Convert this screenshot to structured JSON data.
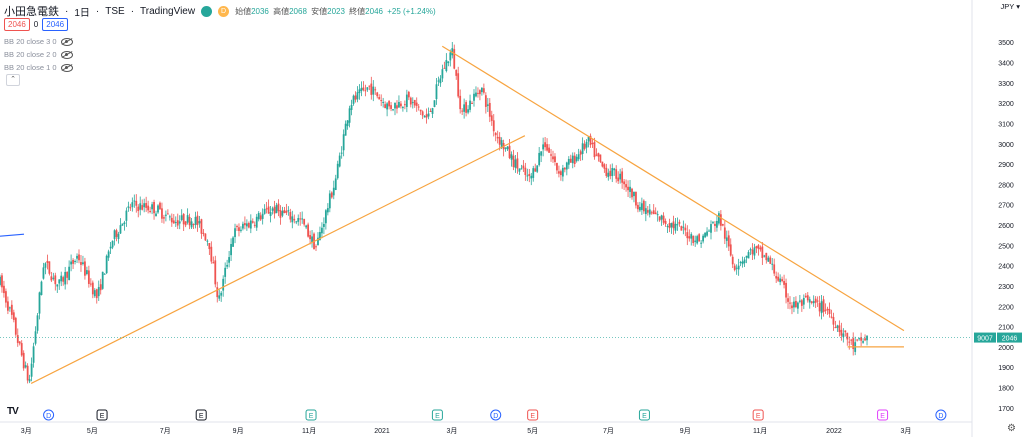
{
  "header": {
    "symbol": "小田急電鉄",
    "interval": "1日",
    "exchange": "TSE",
    "provider": "TradingView",
    "status_badge": "D",
    "open_label": "始値",
    "open_value": "2036",
    "high_label": "高値",
    "high_value": "2068",
    "low_label": "安値",
    "low_value": "2023",
    "close_label": "終値",
    "close_value": "2046",
    "change": "+25 (+1.24%)",
    "bid": "2046",
    "spread": "0",
    "ask": "2046"
  },
  "indicators": [
    {
      "label": "BB 20 close 3 0"
    },
    {
      "label": "BB 20 close 2 0"
    },
    {
      "label": "BB 20 close 1 0"
    }
  ],
  "currency": "JPY",
  "colors": {
    "up": "#26a69a",
    "down": "#ef5350",
    "trend": "#f7a440",
    "accent": "#2962ff"
  },
  "chart_data": {
    "type": "candlestick",
    "x_ticks": [
      "3月",
      "5月",
      "7月",
      "9月",
      "11月",
      "2021",
      "3月",
      "5月",
      "7月",
      "9月",
      "11月",
      "2022",
      "3月"
    ],
    "y_ticks": [
      1700,
      1800,
      1900,
      2000,
      2100,
      2200,
      2300,
      2400,
      2500,
      2600,
      2700,
      2800,
      2900,
      3000,
      3100,
      3200,
      3300,
      3400,
      3500
    ],
    "ylim": [
      1650,
      3570
    ],
    "last_price": 2046,
    "last_price_label": "2046",
    "symbol_code": "9007",
    "price_path": [
      [
        0.0,
        2320
      ],
      [
        0.012,
        2150
      ],
      [
        0.02,
        2000
      ],
      [
        0.03,
        1820
      ],
      [
        0.045,
        2420
      ],
      [
        0.06,
        2300
      ],
      [
        0.08,
        2450
      ],
      [
        0.1,
        2240
      ],
      [
        0.115,
        2520
      ],
      [
        0.135,
        2700
      ],
      [
        0.16,
        2680
      ],
      [
        0.18,
        2620
      ],
      [
        0.2,
        2630
      ],
      [
        0.215,
        2520
      ],
      [
        0.225,
        2220
      ],
      [
        0.24,
        2560
      ],
      [
        0.26,
        2620
      ],
      [
        0.28,
        2680
      ],
      [
        0.31,
        2620
      ],
      [
        0.325,
        2490
      ],
      [
        0.345,
        2820
      ],
      [
        0.36,
        3200
      ],
      [
        0.38,
        3280
      ],
      [
        0.4,
        3180
      ],
      [
        0.42,
        3220
      ],
      [
        0.44,
        3120
      ],
      [
        0.455,
        3360
      ],
      [
        0.465,
        3460
      ],
      [
        0.475,
        3150
      ],
      [
        0.495,
        3280
      ],
      [
        0.51,
        3050
      ],
      [
        0.53,
        2900
      ],
      [
        0.545,
        2820
      ],
      [
        0.56,
        3010
      ],
      [
        0.575,
        2860
      ],
      [
        0.59,
        2920
      ],
      [
        0.605,
        3010
      ],
      [
        0.62,
        2880
      ],
      [
        0.64,
        2830
      ],
      [
        0.66,
        2680
      ],
      [
        0.68,
        2630
      ],
      [
        0.7,
        2580
      ],
      [
        0.72,
        2520
      ],
      [
        0.74,
        2640
      ],
      [
        0.755,
        2400
      ],
      [
        0.775,
        2480
      ],
      [
        0.79,
        2430
      ],
      [
        0.8,
        2340
      ],
      [
        0.815,
        2200
      ],
      [
        0.83,
        2220
      ],
      [
        0.85,
        2190
      ],
      [
        0.865,
        2080
      ],
      [
        0.878,
        2000
      ],
      [
        0.892,
        2046
      ]
    ],
    "trendlines": [
      {
        "from": [
          0.032,
          1820
        ],
        "to": [
          0.54,
          3040
        ]
      },
      {
        "from": [
          0.455,
          3480
        ],
        "to": [
          0.93,
          2080
        ]
      },
      {
        "from": [
          0.872,
          2000
        ],
        "to": [
          0.93,
          2000
        ]
      }
    ],
    "event_markers": [
      {
        "label": "D",
        "pos": 0.05,
        "color": "#2962ff"
      },
      {
        "label": "E",
        "pos": 0.105,
        "color": "#131722"
      },
      {
        "label": "E",
        "pos": 0.207,
        "color": "#131722"
      },
      {
        "label": "E",
        "pos": 0.32,
        "color": "#26a69a"
      },
      {
        "label": "E",
        "pos": 0.45,
        "color": "#26a69a"
      },
      {
        "label": "D",
        "pos": 0.51,
        "color": "#2962ff"
      },
      {
        "label": "E",
        "pos": 0.548,
        "color": "#ef5350"
      },
      {
        "label": "E",
        "pos": 0.663,
        "color": "#26a69a"
      },
      {
        "label": "E",
        "pos": 0.78,
        "color": "#ef5350"
      },
      {
        "label": "E",
        "pos": 0.908,
        "color": "#e040fb"
      },
      {
        "label": "D",
        "pos": 0.968,
        "color": "#2962ff"
      }
    ]
  }
}
